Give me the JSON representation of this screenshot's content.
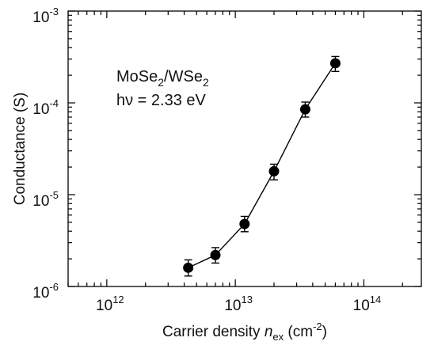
{
  "chart_data": {
    "type": "scatter",
    "x_scale": "log",
    "y_scale": "log",
    "xlim": [
      500000000000.0,
      280000000000000.0
    ],
    "ylim": [
      1e-06,
      0.001
    ],
    "grid": false,
    "xlabel": {
      "prefix": "Carrier density ",
      "italic": "n",
      "sub": "ex",
      "suffix_open": " (cm",
      "sup": "-2",
      "suffix_close": ")"
    },
    "ylabel": "Conductance (S)",
    "x_ticks": [
      {
        "base": "10",
        "exp": "12",
        "value": 1000000000000.0
      },
      {
        "base": "10",
        "exp": "13",
        "value": 10000000000000.0
      },
      {
        "base": "10",
        "exp": "14",
        "value": 100000000000000.0
      }
    ],
    "y_ticks": [
      {
        "base": "10",
        "exp": "-6",
        "value": 1e-06
      },
      {
        "base": "10",
        "exp": "-5",
        "value": 1e-05
      },
      {
        "base": "10",
        "exp": "-4",
        "value": 0.0001
      },
      {
        "base": "10",
        "exp": "-3",
        "value": 0.001
      }
    ],
    "annotation": [
      {
        "parts": [
          {
            "t": "MoSe"
          },
          {
            "t": "2",
            "sub": true
          },
          {
            "t": "/WSe"
          },
          {
            "t": "2",
            "sub": true
          }
        ]
      },
      {
        "parts": [
          {
            "t": "hν = 2.33 eV"
          }
        ]
      }
    ],
    "series": [
      {
        "marker": "filled-circle",
        "line": true,
        "color": "#000000",
        "points": [
          {
            "x": 4300000000000.0,
            "y": 1.6e-06,
            "err_low": 1.3e-06,
            "err_high": 1.95e-06
          },
          {
            "x": 7000000000000.0,
            "y": 2.2e-06,
            "err_low": 1.8e-06,
            "err_high": 2.65e-06
          },
          {
            "x": 11800000000000.0,
            "y": 4.8e-06,
            "err_low": 3.95e-06,
            "err_high": 5.8e-06
          },
          {
            "x": 20000000000000.0,
            "y": 1.8e-05,
            "err_low": 1.45e-05,
            "err_high": 2.15e-05
          },
          {
            "x": 35000000000000.0,
            "y": 8.5e-05,
            "err_low": 7e-05,
            "err_high": 0.000102
          },
          {
            "x": 60000000000000.0,
            "y": 0.00027,
            "err_low": 0.00022,
            "err_high": 0.00032
          }
        ]
      }
    ]
  }
}
